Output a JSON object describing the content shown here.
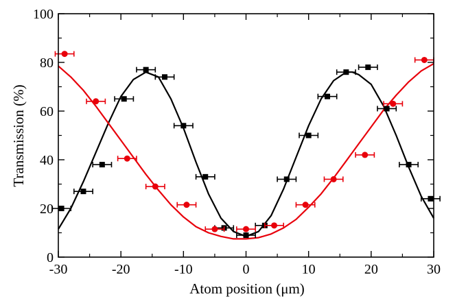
{
  "chart_data": {
    "type": "scatter",
    "title": "",
    "xlabel": "Atom position (μm)",
    "ylabel": "Transmission (%)",
    "xlim": [
      -30,
      30
    ],
    "ylim": [
      0,
      100
    ],
    "x_ticks": [
      -30,
      -20,
      -10,
      0,
      10,
      20,
      30
    ],
    "y_ticks": [
      0,
      20,
      40,
      60,
      80,
      100
    ],
    "x_tick_labels": [
      "-30",
      "-20",
      "-10",
      "0",
      "10",
      "20",
      "30"
    ],
    "y_tick_labels": [
      "0",
      "20",
      "40",
      "60",
      "80",
      "100"
    ],
    "grid": false,
    "legend": "none",
    "series": [
      {
        "marker": "square",
        "color": "#000000",
        "xerr": 1.5,
        "points": [
          {
            "x": -29.5,
            "y": 20
          },
          {
            "x": -26,
            "y": 27
          },
          {
            "x": -23,
            "y": 38
          },
          {
            "x": -19.5,
            "y": 65
          },
          {
            "x": -16,
            "y": 77
          },
          {
            "x": -13,
            "y": 74
          },
          {
            "x": -10,
            "y": 54
          },
          {
            "x": -6.5,
            "y": 33
          },
          {
            "x": -3.5,
            "y": 12
          },
          {
            "x": 0,
            "y": 9
          },
          {
            "x": 3,
            "y": 13
          },
          {
            "x": 6.5,
            "y": 32
          },
          {
            "x": 10,
            "y": 50
          },
          {
            "x": 13,
            "y": 66
          },
          {
            "x": 16,
            "y": 76
          },
          {
            "x": 19.5,
            "y": 78
          },
          {
            "x": 22.5,
            "y": 61
          },
          {
            "x": 26,
            "y": 38
          },
          {
            "x": 29.5,
            "y": 24
          }
        ],
        "fit_line": [
          {
            "x": -30,
            "y": 11.5
          },
          {
            "x": -28,
            "y": 20
          },
          {
            "x": -26,
            "y": 31
          },
          {
            "x": -24,
            "y": 43
          },
          {
            "x": -22,
            "y": 55
          },
          {
            "x": -20,
            "y": 66
          },
          {
            "x": -18,
            "y": 73
          },
          {
            "x": -16,
            "y": 76
          },
          {
            "x": -14,
            "y": 74
          },
          {
            "x": -12,
            "y": 65
          },
          {
            "x": -10,
            "y": 53
          },
          {
            "x": -8,
            "y": 39
          },
          {
            "x": -6,
            "y": 26
          },
          {
            "x": -4,
            "y": 16
          },
          {
            "x": -2,
            "y": 10.5
          },
          {
            "x": 0,
            "y": 8.5
          },
          {
            "x": 2,
            "y": 10.5
          },
          {
            "x": 4,
            "y": 17
          },
          {
            "x": 6,
            "y": 28
          },
          {
            "x": 8,
            "y": 41
          },
          {
            "x": 10,
            "y": 54
          },
          {
            "x": 12,
            "y": 65
          },
          {
            "x": 14,
            "y": 72.5
          },
          {
            "x": 16,
            "y": 76
          },
          {
            "x": 17,
            "y": 76
          },
          {
            "x": 18,
            "y": 75
          },
          {
            "x": 20,
            "y": 71
          },
          {
            "x": 22,
            "y": 62
          },
          {
            "x": 24,
            "y": 50
          },
          {
            "x": 26,
            "y": 37
          },
          {
            "x": 28,
            "y": 25
          },
          {
            "x": 30,
            "y": 16
          }
        ]
      },
      {
        "marker": "circle",
        "color": "#e8000b",
        "xerr": 1.5,
        "points": [
          {
            "x": -29,
            "y": 83.5
          },
          {
            "x": -24,
            "y": 64
          },
          {
            "x": -19,
            "y": 40.5
          },
          {
            "x": -14.5,
            "y": 29
          },
          {
            "x": -9.5,
            "y": 21.5
          },
          {
            "x": -5,
            "y": 11.5
          },
          {
            "x": 0,
            "y": 11.5
          },
          {
            "x": 4.5,
            "y": 13
          },
          {
            "x": 9.5,
            "y": 21.5
          },
          {
            "x": 14,
            "y": 32
          },
          {
            "x": 19,
            "y": 42
          },
          {
            "x": 23.5,
            "y": 63
          },
          {
            "x": 28.5,
            "y": 81
          }
        ],
        "fit_line": [
          {
            "x": -30,
            "y": 78.5
          },
          {
            "x": -28,
            "y": 74
          },
          {
            "x": -26,
            "y": 68.5
          },
          {
            "x": -24,
            "y": 62
          },
          {
            "x": -22,
            "y": 55
          },
          {
            "x": -20,
            "y": 48
          },
          {
            "x": -18,
            "y": 41
          },
          {
            "x": -16,
            "y": 34
          },
          {
            "x": -14,
            "y": 27.5
          },
          {
            "x": -12,
            "y": 21.5
          },
          {
            "x": -10,
            "y": 16.5
          },
          {
            "x": -8,
            "y": 12.5
          },
          {
            "x": -6,
            "y": 10
          },
          {
            "x": -4,
            "y": 8.5
          },
          {
            "x": -2,
            "y": 7.5
          },
          {
            "x": 0,
            "y": 7.5
          },
          {
            "x": 2,
            "y": 8
          },
          {
            "x": 4,
            "y": 9.5
          },
          {
            "x": 6,
            "y": 12
          },
          {
            "x": 8,
            "y": 15.5
          },
          {
            "x": 10,
            "y": 20.5
          },
          {
            "x": 12,
            "y": 26
          },
          {
            "x": 14,
            "y": 32.5
          },
          {
            "x": 16,
            "y": 39.5
          },
          {
            "x": 18,
            "y": 46.5
          },
          {
            "x": 20,
            "y": 53.5
          },
          {
            "x": 22,
            "y": 60.5
          },
          {
            "x": 24,
            "y": 66.5
          },
          {
            "x": 26,
            "y": 72
          },
          {
            "x": 28,
            "y": 76.5
          },
          {
            "x": 30,
            "y": 79.5
          }
        ]
      }
    ]
  }
}
